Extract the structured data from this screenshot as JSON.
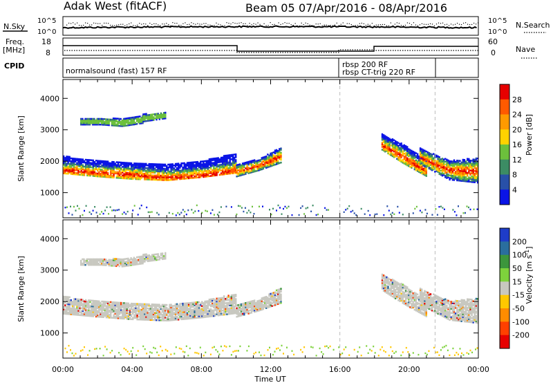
{
  "header": {
    "radar": "Adak West (fitACF)",
    "beam": "Beam 05",
    "date_range": "07/Apr/2016 - 08/Apr/2016"
  },
  "noise_panel": {
    "left_label": "N.Sky",
    "right_label": "N.Search",
    "left_ticks": [
      "10^5",
      "10^0"
    ],
    "right_ticks": [
      "10^5",
      "10^0"
    ]
  },
  "freq_panel": {
    "left_label_line1": "Freq.",
    "left_label_line2": "[MHz]",
    "left_ticks": [
      "18",
      "8"
    ],
    "right_label": "Nave",
    "right_ticks": [
      "60",
      "0"
    ]
  },
  "cpid_panel": {
    "label": "CPID",
    "programs": [
      {
        "text": "normalsound (fast) 157 RF"
      },
      {
        "text": "rbsp 200 RF"
      },
      {
        "text": "rbsp CT-trig 220 RF"
      }
    ]
  },
  "chart_data": [
    {
      "type": "heatmap",
      "quantity": "Power",
      "ylabel": "Slant Range [km]",
      "yticks": [
        1000,
        2000,
        3000,
        4000
      ],
      "ylim": [
        200,
        4600
      ],
      "colorbar_label": "Power [dB]",
      "colorbar_ticks": [
        "4",
        "8",
        "12",
        "16",
        "20",
        "24",
        "28"
      ],
      "colors": [
        "#0a14e6",
        "#2850a8",
        "#3c8c64",
        "#6cc03c",
        "#ffd200",
        "#ff9a00",
        "#ff5a00",
        "#e60000"
      ],
      "bands": [
        {
          "t0": 0.0,
          "t1": 10.0,
          "r_low": [
            1600,
            1500,
            1420,
            1380,
            1480,
            1620
          ],
          "r_high": [
            2150,
            2000,
            1950,
            1920,
            2000,
            2250
          ],
          "core": [
            1700,
            1620,
            1550,
            1460,
            1530,
            1700
          ]
        },
        {
          "t0": 1.0,
          "t1": 4.6,
          "r_low": [
            3150,
            3150,
            3100,
            3200
          ],
          "r_high": [
            3350,
            3350,
            3350,
            3450
          ],
          "core": [
            3250,
            3250,
            3200,
            3300
          ]
        },
        {
          "t0": 4.6,
          "t1": 5.9,
          "r_low": [
            3250,
            3350
          ],
          "r_high": [
            3480,
            3550
          ],
          "core": [
            3350,
            3450
          ]
        },
        {
          "t0": 10.0,
          "t1": 12.6,
          "r_low": [
            1500,
            1700,
            1950
          ],
          "r_high": [
            1900,
            2050,
            2450
          ],
          "core": [
            1650,
            1850,
            2150
          ]
        },
        {
          "t0": 18.4,
          "t1": 21.0,
          "r_low": [
            2350,
            1900,
            1500
          ],
          "r_high": [
            2850,
            2500,
            2000
          ],
          "core": [
            2500,
            2100,
            1650
          ]
        },
        {
          "t0": 20.6,
          "t1": 24.0,
          "r_low": [
            1900,
            1400,
            1300
          ],
          "r_high": [
            2400,
            2000,
            2100
          ],
          "core": [
            2100,
            1700,
            1650
          ]
        }
      ]
    },
    {
      "type": "heatmap",
      "quantity": "Velocity",
      "ylabel": "Slant Range [km]",
      "yticks": [
        1000,
        2000,
        3000,
        4000
      ],
      "ylim": [
        200,
        4600
      ],
      "colorbar_label": "Velocity [m s-1]",
      "colorbar_ticks": [
        "200",
        "100",
        "50",
        "15",
        "-15",
        "-50",
        "-100",
        "-200"
      ],
      "colors": [
        "#1e3cc8",
        "#2a6e9e",
        "#3c963c",
        "#7ed23c",
        "#c8c8c0",
        "#ffc800",
        "#ff8c00",
        "#ff4000",
        "#e60000"
      ],
      "xticks": [
        "00:00",
        "04:00",
        "08:00",
        "12:00",
        "16:00",
        "20:00",
        "00:00"
      ],
      "xlabel": "Time UT",
      "xlim": [
        0,
        24
      ]
    }
  ]
}
